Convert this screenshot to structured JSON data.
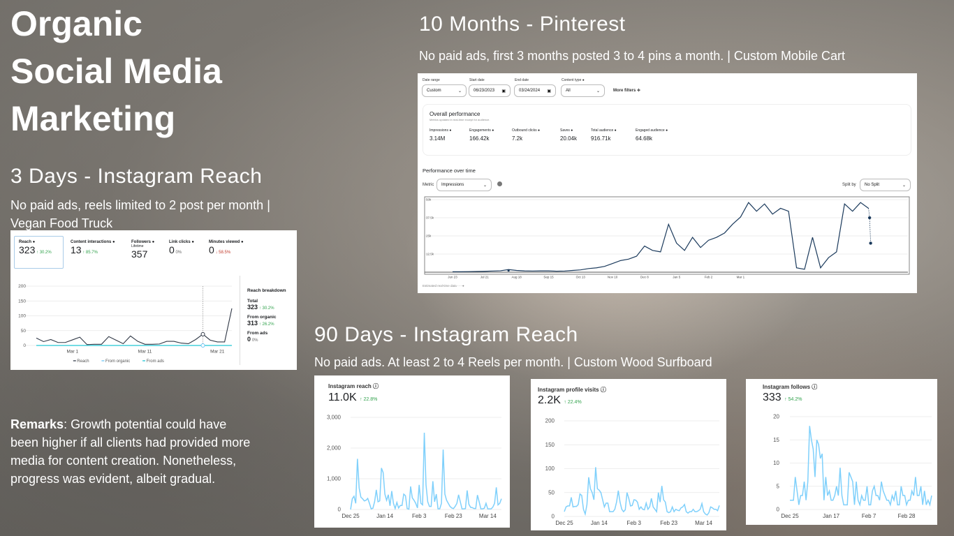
{
  "title": [
    "Organic",
    "Social Media",
    "Marketing"
  ],
  "ig3": {
    "heading": "3 Days - Instagram Reach",
    "subtitle": [
      "No paid ads, reels limited to 2 post per month |",
      "Vegan Food Truck"
    ],
    "metrics": [
      {
        "label": "Reach",
        "value": "323",
        "change": "↑ 30.2%"
      },
      {
        "label": "Content interactions",
        "value": "13",
        "change": "↑ 85.7%"
      },
      {
        "label": "Followers",
        "sub": "Lifetime",
        "value": "357"
      },
      {
        "label": "Link clicks",
        "value": "0",
        "change": "0%"
      },
      {
        "label": "Minutes viewed",
        "value": "0",
        "change": "↓ 58.5%"
      }
    ],
    "breakdown": {
      "title": "Reach breakdown",
      "total_label": "Total",
      "total": "323",
      "total_change": "↑ 30.2%",
      "organic_label": "From organic",
      "organic": "313",
      "organic_change": "↑ 26.2%",
      "ads_label": "From ads",
      "ads": "0",
      "ads_change": "0%"
    },
    "legend": [
      "Reach",
      "From organic",
      "From ads"
    ]
  },
  "remarks": {
    "label": "Remarks",
    "text": ":  Growth potential could have been higher if all clients had provided more media for content creation. Nonetheless, progress was evident, albeit gradual."
  },
  "pin": {
    "heading": "10 Months - Pinterest",
    "subtitle": "No paid ads, first 3 months posted 3 to 4 pins a month. | Custom Mobile Cart",
    "filters": {
      "date_range_label": "Date range",
      "date_range": "Custom",
      "start_label": "Start date",
      "start": "06/23/2023",
      "end_label": "End date",
      "end": "03/24/2024",
      "content_label": "Content type",
      "content": "All",
      "more": "More filters ≑"
    },
    "overall": {
      "title": "Overall performance",
      "note": "Metrics updated in real-time except for audience.",
      "metrics": [
        {
          "label": "Impressions",
          "value": "3.14M"
        },
        {
          "label": "Engagements",
          "value": "166.42k"
        },
        {
          "label": "Outbound clicks",
          "value": "7.2k"
        },
        {
          "label": "Saves",
          "value": "20.04k"
        },
        {
          "label": "Total audience",
          "value": "916.71k"
        },
        {
          "label": "Engaged audience",
          "value": "64.68k"
        }
      ]
    },
    "pot": "Performance over time",
    "metric_label": "Metric",
    "metric": "Impressions",
    "split_label": "Split by",
    "split": "No Split",
    "estimated": "Estimated real-time data"
  },
  "ig90": {
    "heading": "90 Days - Instagram Reach",
    "subtitle": "No paid ads. At least 2 to 4 Reels per month. | Custom Wood Surfboard",
    "cards": [
      {
        "title": "Instagram reach",
        "value": "11.0K",
        "change": "↑ 22.8%"
      },
      {
        "title": "Instagram profile visits",
        "value": "2.2K",
        "change": "↑ 22.4%"
      },
      {
        "title": "Instagram follows",
        "value": "333",
        "change": "↑ 54.2%"
      }
    ]
  },
  "colors": {
    "ig_line": "#7fd0fb",
    "pin_line": "#1b3a5c",
    "reach_line": "#303846",
    "organic": "#6cc6f5",
    "ads": "#22c6d4",
    "up": "#31a24c",
    "down": "#c0392b"
  },
  "chart_data": [
    {
      "id": "ig3",
      "type": "line",
      "ylim": [
        0,
        200
      ],
      "yticks": [
        "0",
        "50",
        "100",
        "150",
        "200"
      ],
      "xticks": [
        {
          "i": 5,
          "label": "Mar 1"
        },
        {
          "i": 15,
          "label": "Mar 11"
        },
        {
          "i": 25,
          "label": "Mar 21"
        }
      ],
      "series": [
        {
          "name": "Reach",
          "values": [
            25,
            13,
            20,
            10,
            10,
            19,
            28,
            3,
            4,
            4,
            30,
            18,
            6,
            32,
            14,
            4,
            4,
            5,
            14,
            14,
            8,
            6,
            20,
            38,
            18,
            12,
            12,
            125
          ]
        },
        {
          "name": "From organic",
          "values": [
            0,
            0
          ]
        },
        {
          "name": "From ads",
          "values": [
            0,
            0
          ]
        }
      ]
    },
    {
      "id": "pin",
      "type": "line",
      "ylim": [
        0,
        50
      ],
      "yticks": [
        "",
        "12.5k",
        "25k",
        "37.5k",
        "50k"
      ],
      "xticks": [
        {
          "i": 0,
          "label": "Jun 23"
        },
        {
          "i": 4,
          "label": "Jul 21"
        },
        {
          "i": 8,
          "label": "Aug 18"
        },
        {
          "i": 12,
          "label": "Sep 15"
        },
        {
          "i": 16,
          "label": "Oct 13"
        },
        {
          "i": 20,
          "label": "Nov 10"
        },
        {
          "i": 24,
          "label": "Dec 8"
        },
        {
          "i": 28,
          "label": "Jan 5"
        },
        {
          "i": 32,
          "label": "Feb 2"
        },
        {
          "i": 36,
          "label": "Mar 1"
        }
      ],
      "series": [
        {
          "name": "Impressions (thousands)",
          "values": [
            0.3,
            0.3,
            0.4,
            0.5,
            0.6,
            0.8,
            1.0,
            1.8,
            1.2,
            0.9,
            0.8,
            0.9,
            0.9,
            0.7,
            0.8,
            1.2,
            1.6,
            2.5,
            3,
            4,
            6,
            8,
            9,
            11,
            18,
            15,
            14,
            33,
            20,
            15,
            24,
            17,
            22,
            24,
            27,
            33,
            38,
            48,
            42,
            47,
            40,
            44,
            42,
            3,
            2,
            24,
            3,
            10,
            14,
            47,
            42,
            48,
            44
          ]
        },
        {
          "name": "Estimated",
          "values": [
            44,
            37.5,
            20
          ]
        }
      ]
    },
    {
      "id": "reach",
      "type": "line",
      "ylim": [
        0,
        3000
      ],
      "yticks": [
        "0",
        "1,000",
        "2,000",
        "3,000"
      ],
      "xticks": [
        {
          "i": 0,
          "label": "Dec 25"
        },
        {
          "i": 20,
          "label": "Jan 14"
        },
        {
          "i": 40,
          "label": "Feb 3"
        },
        {
          "i": 60,
          "label": "Feb 23"
        },
        {
          "i": 80,
          "label": "Mar 14"
        }
      ],
      "series": [
        {
          "name": "Instagram reach",
          "values": [
            0,
            350,
            430,
            200,
            1650,
            700,
            400,
            350,
            280,
            300,
            360,
            200,
            20,
            40,
            250,
            640,
            250,
            280,
            1350,
            1200,
            500,
            300,
            480,
            120,
            600,
            200,
            30,
            230,
            50,
            130,
            130,
            500,
            450,
            30,
            10,
            750,
            380,
            300,
            200,
            50,
            800,
            200,
            150,
            2500,
            800,
            250,
            100,
            100,
            920,
            250,
            500,
            20,
            20,
            200,
            1950,
            500,
            300,
            200,
            100,
            50,
            30,
            100,
            200,
            480,
            250,
            20,
            20,
            30,
            620,
            170,
            70,
            60,
            30,
            30,
            470,
            250,
            20,
            20,
            40,
            200,
            20,
            20,
            20,
            80,
            200,
            720,
            150,
            200,
            350
          ]
        }
      ]
    },
    {
      "id": "visits",
      "type": "line",
      "ylim": [
        0,
        200
      ],
      "yticks": [
        "0",
        "50",
        "100",
        "150",
        "200"
      ],
      "xticks": [
        {
          "i": 0,
          "label": "Dec 25"
        },
        {
          "i": 20,
          "label": "Jan 14"
        },
        {
          "i": 40,
          "label": "Feb 3"
        },
        {
          "i": 60,
          "label": "Feb 23"
        },
        {
          "i": 80,
          "label": "Mar 14"
        }
      ],
      "series": [
        {
          "name": "Instagram profile visits",
          "values": [
            10,
            20,
            22,
            22,
            40,
            20,
            21,
            21,
            25,
            47,
            44,
            15,
            5,
            25,
            82,
            58,
            50,
            35,
            103,
            58,
            55,
            50,
            35,
            20,
            28,
            28,
            10,
            10,
            10,
            15,
            30,
            54,
            30,
            15,
            10,
            14,
            50,
            38,
            22,
            23,
            35,
            34,
            30,
            15,
            20,
            15,
            14,
            28,
            15,
            20,
            38,
            20,
            15,
            10,
            50,
            30,
            64,
            35,
            30,
            10,
            8,
            10,
            20,
            10,
            15,
            13,
            12,
            18,
            20,
            25,
            10,
            7,
            10,
            10,
            15,
            10,
            10,
            12,
            15,
            27,
            10,
            5,
            3,
            8,
            20,
            18,
            15,
            15,
            12,
            23
          ]
        }
      ]
    },
    {
      "id": "follows",
      "type": "line",
      "ylim": [
        0,
        20
      ],
      "yticks": [
        "0",
        "5",
        "10",
        "15",
        "20"
      ],
      "xticks": [
        {
          "i": 0,
          "label": "Dec 25"
        },
        {
          "i": 23,
          "label": "Jan 17"
        },
        {
          "i": 44,
          "label": "Feb 7"
        },
        {
          "i": 65,
          "label": "Feb 28"
        }
      ],
      "series": [
        {
          "name": "Instagram follows",
          "values": [
            2,
            2,
            2,
            7,
            4,
            1,
            3,
            3,
            6,
            2,
            6,
            18,
            15,
            13,
            7,
            15,
            14,
            11,
            12,
            2,
            7,
            3,
            4,
            2,
            2,
            3,
            5,
            3,
            9,
            3,
            1,
            1,
            1,
            8,
            7,
            6,
            1,
            6,
            2,
            1,
            3,
            2,
            2,
            5,
            1,
            1,
            4,
            5,
            3,
            3,
            2,
            6,
            4,
            3,
            2,
            2,
            1,
            3,
            2,
            4,
            1,
            1,
            5,
            3,
            3,
            1,
            2,
            2,
            4,
            3,
            7,
            3,
            3,
            5,
            1,
            4,
            1,
            2,
            1,
            3
          ]
        }
      ]
    }
  ]
}
